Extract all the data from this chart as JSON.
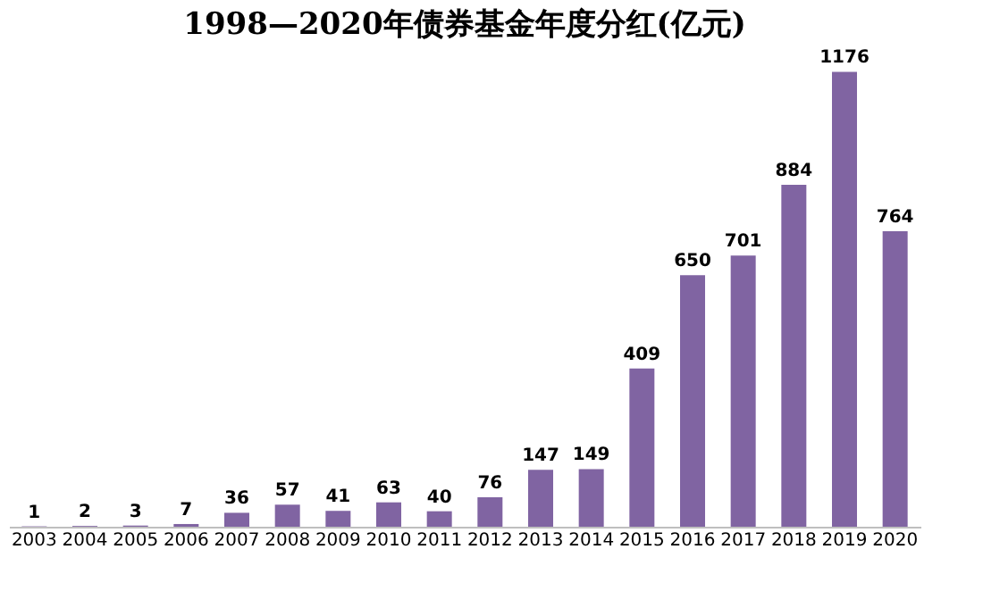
{
  "chart_data": {
    "type": "bar",
    "title": "1998—2020年债券基金年度分红(亿元)",
    "categories": [
      "2003",
      "2004",
      "2005",
      "2006",
      "2007",
      "2008",
      "2009",
      "2010",
      "2011",
      "2012",
      "2013",
      "2014",
      "2015",
      "2016",
      "2017",
      "2018",
      "2019",
      "2020"
    ],
    "values": [
      1,
      2,
      3,
      7,
      36,
      57,
      41,
      63,
      40,
      76,
      147,
      149,
      409,
      650,
      701,
      884,
      1176,
      764
    ],
    "color": "#8064a2",
    "data_labels": true,
    "grid": false
  }
}
